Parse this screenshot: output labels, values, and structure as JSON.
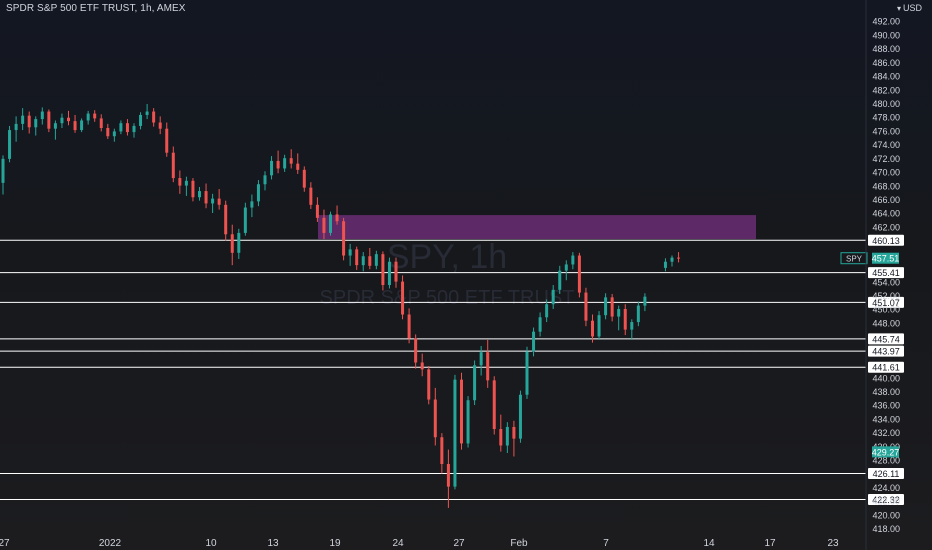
{
  "header": {
    "title": "SPDR S&P 500 ETF TRUST, 1h, AMEX",
    "currency": "USD"
  },
  "watermark": {
    "symbol_text": "SPY, 1h",
    "name_text": "SPDR S&P 500 ETF TRUST"
  },
  "colors": {
    "up": "#26a69a",
    "down": "#ef5350",
    "zone": "#6a2d73",
    "level_line": "#ffffff",
    "price_badge": "#26a69a"
  },
  "chart_data": {
    "type": "candlestick",
    "symbol": "SPY",
    "timeframe": "1h",
    "exchange": "AMEX",
    "ylim": [
      417,
      494
    ],
    "y_ticks": [
      "492.00",
      "490.00",
      "488.00",
      "486.00",
      "484.00",
      "482.00",
      "480.00",
      "478.00",
      "476.00",
      "474.00",
      "472.00",
      "470.00",
      "468.00",
      "466.00",
      "464.00",
      "462.00",
      "454.00",
      "452.00",
      "450.00",
      "448.00",
      "440.00",
      "438.00",
      "436.00",
      "434.00",
      "432.00",
      "430.00",
      "428.00",
      "424.00",
      "422.00",
      "420.00",
      "418.00"
    ],
    "x_ticks": [
      "27",
      "2022",
      "10",
      "13",
      "19",
      "24",
      "27",
      "Feb",
      "7",
      "14",
      "17",
      "23"
    ],
    "levels": [
      460.13,
      455.41,
      451.07,
      445.74,
      443.97,
      441.61,
      426.11,
      422.32
    ],
    "level_labels": [
      "460.13",
      "455.41",
      "451.07",
      "445.74",
      "443.97",
      "441.61",
      "426.11",
      "422.32"
    ],
    "current_price": {
      "ticker": "SPY",
      "value": 457.51,
      "label": "457.51"
    },
    "highlight_level": {
      "value": 429.27,
      "label": "429.27"
    },
    "zone": {
      "from": 460.3,
      "to": 463.8
    },
    "candles": [
      [
        468.5,
        472.5,
        466.8,
        472.0
      ],
      [
        472.0,
        476.8,
        471.5,
        476.2
      ],
      [
        476.2,
        478.2,
        474.5,
        477.1
      ],
      [
        477.1,
        479.4,
        476.2,
        478.3
      ],
      [
        478.3,
        478.9,
        475.7,
        476.6
      ],
      [
        476.6,
        478.2,
        475.4,
        477.8
      ],
      [
        477.8,
        479.5,
        477.0,
        478.9
      ],
      [
        478.9,
        479.2,
        475.9,
        476.4
      ],
      [
        476.4,
        477.6,
        474.8,
        477.2
      ],
      [
        477.2,
        478.6,
        476.5,
        478.0
      ],
      [
        478.0,
        479.0,
        476.9,
        477.5
      ],
      [
        477.5,
        478.4,
        475.8,
        476.2
      ],
      [
        476.2,
        477.9,
        475.9,
        477.6
      ],
      [
        477.6,
        479.0,
        477.0,
        478.6
      ],
      [
        478.6,
        479.1,
        477.4,
        477.9
      ],
      [
        477.9,
        478.5,
        476.0,
        476.5
      ],
      [
        476.5,
        477.1,
        474.9,
        475.3
      ],
      [
        475.3,
        476.4,
        474.5,
        476.0
      ],
      [
        476.0,
        477.6,
        475.6,
        477.2
      ],
      [
        477.2,
        477.8,
        475.4,
        475.9
      ],
      [
        475.9,
        477.2,
        475.1,
        476.8
      ],
      [
        476.8,
        478.8,
        476.3,
        478.4
      ],
      [
        478.4,
        480.0,
        477.8,
        478.9
      ],
      [
        478.9,
        479.4,
        476.7,
        477.3
      ],
      [
        477.3,
        478.2,
        475.6,
        476.4
      ],
      [
        476.4,
        477.3,
        472.3,
        472.9
      ],
      [
        472.9,
        473.8,
        468.6,
        469.2
      ],
      [
        469.2,
        470.3,
        466.9,
        468.1
      ],
      [
        468.1,
        469.4,
        466.6,
        468.8
      ],
      [
        468.8,
        469.2,
        465.8,
        466.4
      ],
      [
        466.4,
        467.9,
        465.9,
        467.3
      ],
      [
        467.3,
        468.4,
        464.8,
        465.5
      ],
      [
        465.5,
        466.9,
        464.1,
        466.2
      ],
      [
        466.2,
        467.6,
        464.6,
        465.3
      ],
      [
        465.3,
        465.9,
        460.1,
        461.0
      ],
      [
        461.0,
        462.4,
        456.5,
        458.3
      ],
      [
        458.3,
        461.8,
        457.4,
        461.2
      ],
      [
        461.2,
        465.6,
        460.8,
        464.9
      ],
      [
        464.9,
        466.8,
        463.5,
        465.8
      ],
      [
        465.8,
        468.9,
        465.1,
        468.3
      ],
      [
        468.3,
        470.2,
        467.4,
        469.6
      ],
      [
        469.6,
        472.4,
        469.0,
        471.7
      ],
      [
        471.7,
        473.2,
        469.9,
        470.6
      ],
      [
        470.6,
        472.6,
        470.1,
        472.1
      ],
      [
        472.1,
        473.4,
        470.6,
        471.3
      ],
      [
        471.3,
        472.8,
        469.8,
        470.4
      ],
      [
        470.4,
        470.9,
        467.2,
        467.8
      ],
      [
        467.8,
        468.6,
        464.7,
        465.3
      ],
      [
        465.3,
        466.4,
        462.8,
        463.4
      ],
      [
        463.4,
        464.6,
        460.3,
        461.2
      ],
      [
        461.2,
        464.3,
        460.8,
        463.9
      ],
      [
        463.9,
        465.2,
        462.4,
        462.9
      ],
      [
        462.9,
        463.4,
        457.2,
        457.9
      ],
      [
        457.9,
        459.6,
        456.4,
        458.8
      ],
      [
        458.8,
        459.2,
        455.8,
        456.5
      ],
      [
        456.5,
        458.4,
        455.6,
        457.8
      ],
      [
        457.8,
        459.0,
        455.9,
        456.4
      ],
      [
        456.4,
        458.6,
        455.9,
        458.1
      ],
      [
        458.1,
        458.5,
        452.8,
        453.6
      ],
      [
        453.6,
        457.6,
        453.1,
        457.0
      ],
      [
        457.0,
        457.6,
        453.2,
        454.1
      ],
      [
        454.1,
        455.0,
        448.6,
        449.3
      ],
      [
        449.3,
        450.2,
        445.1,
        445.8
      ],
      [
        445.8,
        446.4,
        441.4,
        442.3
      ],
      [
        442.3,
        443.6,
        440.3,
        441.3
      ],
      [
        441.3,
        441.8,
        436.2,
        436.9
      ],
      [
        436.9,
        438.6,
        430.2,
        431.4
      ],
      [
        431.4,
        432.0,
        426.1,
        427.5
      ],
      [
        427.5,
        429.6,
        421.1,
        424.2
      ],
      [
        424.2,
        440.5,
        423.8,
        439.8
      ],
      [
        439.8,
        440.8,
        429.6,
        430.5
      ],
      [
        430.5,
        437.4,
        429.9,
        436.8
      ],
      [
        436.8,
        442.6,
        436.1,
        441.9
      ],
      [
        441.9,
        444.7,
        440.4,
        443.8
      ],
      [
        443.8,
        445.6,
        438.6,
        439.7
      ],
      [
        439.7,
        440.3,
        431.8,
        432.6
      ],
      [
        432.6,
        434.7,
        429.3,
        430.2
      ],
      [
        430.2,
        433.6,
        429.1,
        432.9
      ],
      [
        432.9,
        433.8,
        428.6,
        431.2
      ],
      [
        431.2,
        438.2,
        430.6,
        437.6
      ],
      [
        437.6,
        444.6,
        437.0,
        443.9
      ],
      [
        443.9,
        447.4,
        443.2,
        446.8
      ],
      [
        446.8,
        449.6,
        446.1,
        448.9
      ],
      [
        448.9,
        451.5,
        448.2,
        450.8
      ],
      [
        450.8,
        453.6,
        450.1,
        452.9
      ],
      [
        452.9,
        456.4,
        452.3,
        455.7
      ],
      [
        455.7,
        457.2,
        454.3,
        456.6
      ],
      [
        456.6,
        458.4,
        455.9,
        457.9
      ],
      [
        457.9,
        458.3,
        451.8,
        452.5
      ],
      [
        452.5,
        453.2,
        447.6,
        448.4
      ],
      [
        448.4,
        449.3,
        445.2,
        446.1
      ],
      [
        446.1,
        449.8,
        445.6,
        449.2
      ],
      [
        449.2,
        452.4,
        448.6,
        451.8
      ],
      [
        451.8,
        452.3,
        448.3,
        449.0
      ],
      [
        449.0,
        450.6,
        447.0,
        450.1
      ],
      [
        450.1,
        450.8,
        446.3,
        447.1
      ],
      [
        447.1,
        448.6,
        445.6,
        448.2
      ],
      [
        448.2,
        451.2,
        447.6,
        450.6
      ],
      [
        450.6,
        452.4,
        449.8,
        451.9
      ],
      [
        456.1,
        457.5,
        455.6,
        457.0
      ],
      [
        457.0,
        457.9,
        456.3,
        457.6
      ],
      [
        457.6,
        458.4,
        456.9,
        457.51
      ]
    ]
  }
}
